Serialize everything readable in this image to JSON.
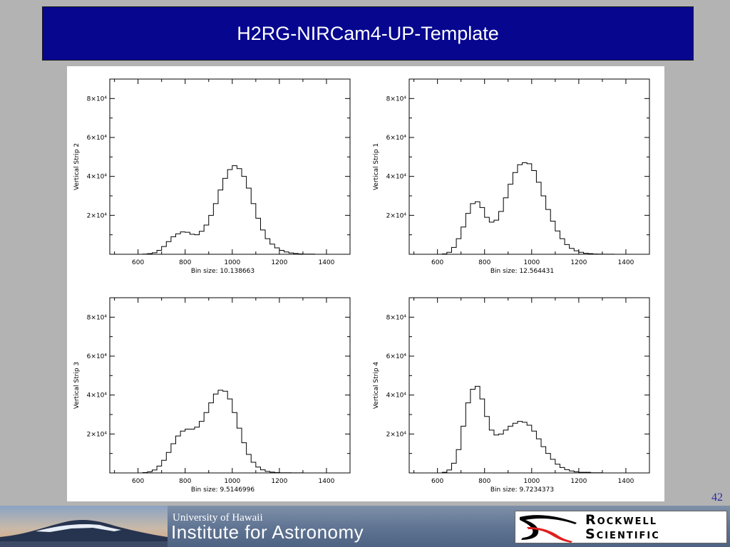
{
  "slide": {
    "title": "H2RG-NIRCam4-UP-Template",
    "page_number": "42"
  },
  "footer": {
    "university_line": "University of Hawaii",
    "institute_line": "Institute for Astronomy",
    "rockwell_line1": "Rockwell",
    "rockwell_line2": "Scientific",
    "colors": {
      "footer_bg": "#5f7392",
      "rockwell_red": "#e01e1e"
    }
  },
  "colors": {
    "title_bg": "#06068f",
    "slide_bg": "#b3b3b3",
    "page_number": "#2a2aa8"
  },
  "chart_data": [
    {
      "type": "histogram",
      "ylabel": "Vertical Strip 2",
      "xlabel": "Bin size: 10.138663",
      "xlim": [
        480,
        1500
      ],
      "ylim": [
        0,
        90000
      ],
      "xticks": [
        600,
        800,
        1000,
        1200,
        1400
      ],
      "yticks": [
        20000,
        40000,
        60000,
        80000
      ],
      "yticklabels": [
        "2×10⁴",
        "4×10⁴",
        "6×10⁴",
        "8×10⁴"
      ],
      "x": [
        600,
        620,
        640,
        660,
        680,
        700,
        720,
        740,
        760,
        780,
        800,
        820,
        840,
        860,
        880,
        900,
        920,
        940,
        960,
        980,
        1000,
        1020,
        1040,
        1060,
        1080,
        1100,
        1120,
        1140,
        1160,
        1180,
        1200,
        1220,
        1240,
        1260,
        1280,
        1300,
        1350,
        1400
      ],
      "y": [
        0,
        100,
        300,
        800,
        2000,
        4000,
        6500,
        9000,
        10500,
        11500,
        11300,
        10300,
        10000,
        11800,
        15000,
        20000,
        26000,
        33000,
        39000,
        43500,
        45500,
        44000,
        40000,
        34000,
        26000,
        18500,
        12500,
        8000,
        5200,
        3300,
        2000,
        1200,
        700,
        400,
        200,
        100,
        20,
        0
      ]
    },
    {
      "type": "histogram",
      "ylabel": "Vertical Strip 1",
      "xlabel": "Bin size: 12.564431",
      "xlim": [
        480,
        1500
      ],
      "ylim": [
        0,
        90000
      ],
      "xticks": [
        600,
        800,
        1000,
        1200,
        1400
      ],
      "yticks": [
        20000,
        40000,
        60000,
        80000
      ],
      "yticklabels": [
        "2×10⁴",
        "4×10⁴",
        "6×10⁴",
        "8×10⁴"
      ],
      "x": [
        600,
        620,
        640,
        660,
        680,
        700,
        720,
        740,
        760,
        780,
        800,
        820,
        840,
        860,
        880,
        900,
        920,
        940,
        960,
        980,
        1000,
        1020,
        1040,
        1060,
        1080,
        1100,
        1120,
        1140,
        1160,
        1180,
        1200,
        1220,
        1240,
        1260,
        1280,
        1300,
        1350,
        1400
      ],
      "y": [
        0,
        200,
        1000,
        3500,
        8000,
        14000,
        21000,
        26000,
        27000,
        24000,
        19000,
        16500,
        17500,
        22000,
        29000,
        36000,
        42000,
        46000,
        47000,
        46500,
        43000,
        37000,
        30000,
        23000,
        17000,
        12000,
        8000,
        5000,
        3000,
        1800,
        1000,
        500,
        300,
        150,
        70,
        30,
        10,
        0
      ]
    },
    {
      "type": "histogram",
      "ylabel": "Vertical Strip 3",
      "xlabel": "Bin size: 9.5146996",
      "xlim": [
        480,
        1500
      ],
      "ylim": [
        0,
        90000
      ],
      "xticks": [
        600,
        800,
        1000,
        1200,
        1400
      ],
      "yticks": [
        20000,
        40000,
        60000,
        80000
      ],
      "yticklabels": [
        "2×10⁴",
        "4×10⁴",
        "6×10⁴",
        "8×10⁴"
      ],
      "x": [
        600,
        620,
        640,
        660,
        680,
        700,
        720,
        740,
        760,
        780,
        800,
        820,
        840,
        860,
        880,
        900,
        920,
        940,
        960,
        980,
        1000,
        1020,
        1040,
        1060,
        1080,
        1100,
        1120,
        1140,
        1160,
        1180,
        1200,
        1250,
        1300,
        1400
      ],
      "y": [
        0,
        200,
        600,
        1500,
        3500,
        6500,
        10500,
        15000,
        19000,
        21500,
        22500,
        22500,
        23500,
        26500,
        31000,
        36000,
        40500,
        42500,
        42000,
        38000,
        31000,
        23000,
        15500,
        9500,
        5500,
        3000,
        1600,
        800,
        400,
        200,
        100,
        30,
        10,
        0
      ]
    },
    {
      "type": "histogram",
      "ylabel": "Vertical Strip 4",
      "xlabel": "Bin size: 9.7234373",
      "xlim": [
        480,
        1500
      ],
      "ylim": [
        0,
        90000
      ],
      "xticks": [
        600,
        800,
        1000,
        1200,
        1400
      ],
      "yticks": [
        20000,
        40000,
        60000,
        80000
      ],
      "yticklabels": [
        "2×10⁴",
        "4×10⁴",
        "6×10⁴",
        "8×10⁴"
      ],
      "x": [
        600,
        620,
        640,
        660,
        680,
        700,
        720,
        740,
        760,
        780,
        800,
        820,
        840,
        860,
        880,
        900,
        920,
        940,
        960,
        980,
        1000,
        1020,
        1040,
        1060,
        1080,
        1100,
        1120,
        1140,
        1160,
        1180,
        1200,
        1250,
        1300,
        1400
      ],
      "y": [
        0,
        300,
        1500,
        5000,
        12000,
        24000,
        36000,
        43000,
        44500,
        38000,
        29000,
        22000,
        19500,
        20000,
        22000,
        24000,
        25500,
        26500,
        26000,
        24500,
        21500,
        17500,
        13500,
        10000,
        7000,
        4500,
        2800,
        1700,
        1000,
        550,
        300,
        80,
        20,
        0
      ]
    }
  ]
}
